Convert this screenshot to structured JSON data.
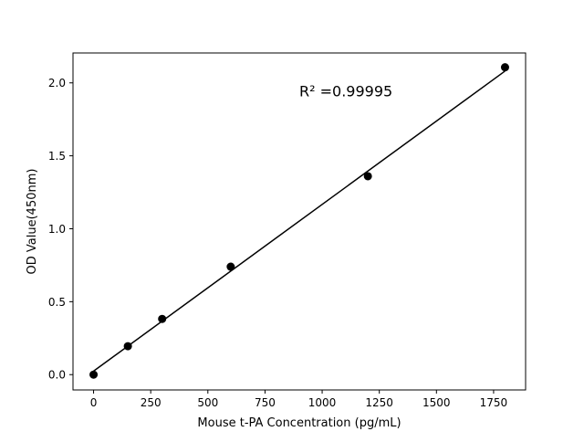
{
  "chart_data": {
    "type": "scatter",
    "title": "",
    "xlabel": "Mouse t-PA Concentration (pg/mL)",
    "ylabel": "OD Value(450nm)",
    "xlim": [
      -90,
      1890
    ],
    "ylim": [
      -0.105,
      2.205
    ],
    "xticks": [
      0,
      250,
      500,
      750,
      1000,
      1250,
      1500,
      1750
    ],
    "xtick_labels": [
      "0",
      "250",
      "500",
      "750",
      "1000",
      "1250",
      "1500",
      "1750"
    ],
    "yticks": [
      0.0,
      0.5,
      1.0,
      1.5,
      2.0
    ],
    "ytick_labels": [
      "0.0",
      "0.5",
      "1.0",
      "1.5",
      "2.0"
    ],
    "grid": false,
    "series": [
      {
        "type": "scatter",
        "x": [
          0,
          150,
          300,
          600,
          1200,
          1800
        ],
        "y": [
          0.0,
          0.195,
          0.382,
          0.74,
          1.36,
          2.107
        ],
        "color": "#000000"
      },
      {
        "type": "line",
        "x": [
          0,
          1800
        ],
        "y": [
          0.024,
          2.081
        ],
        "color": "#000000"
      }
    ],
    "annotations": [
      {
        "text": "R² =0.99995",
        "x": 900,
        "y": 1.9
      }
    ]
  }
}
